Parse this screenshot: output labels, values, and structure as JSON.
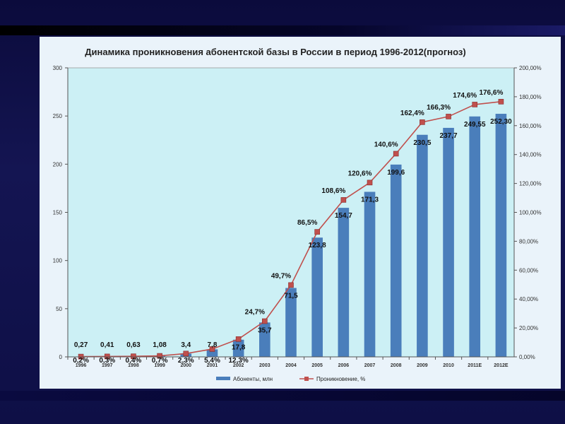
{
  "colors": {
    "bar": "#4a7ebb",
    "line": "#c0504d",
    "plot_bg": "#ccf0f5",
    "slide_bg": "#eaf3fa"
  },
  "chart_data": {
    "type": "bar",
    "title": "Динамика проникновения абонентской базы в России в период 1996-2012(прогноз)",
    "categories": [
      "1996",
      "1997",
      "1998",
      "1999",
      "2000",
      "2001",
      "2002",
      "2003",
      "2004",
      "2005",
      "2006",
      "2007",
      "2008",
      "2009",
      "2010",
      "2011E",
      "2012E"
    ],
    "series": [
      {
        "name": "Абоненты, млн",
        "type": "bar",
        "axis": "left",
        "values": [
          0.27,
          0.41,
          0.63,
          1.08,
          3.4,
          7.8,
          17.8,
          35.7,
          71.5,
          123.8,
          154.7,
          171.3,
          199.6,
          230.5,
          237.7,
          249.55,
          252.3
        ],
        "labels": [
          "0,27",
          "0,41",
          "0,63",
          "1,08",
          "3,4",
          "7,8",
          "17,8",
          "35,7",
          "71,5",
          "123,8",
          "154,7",
          "171,3",
          "199,6",
          "230,5",
          "237,7",
          "249,55",
          "252,30"
        ]
      },
      {
        "name": "Проникновение, %",
        "type": "line",
        "axis": "right",
        "values": [
          0.2,
          0.3,
          0.4,
          0.7,
          2.3,
          5.4,
          12.3,
          24.7,
          49.7,
          86.5,
          108.6,
          120.6,
          140.6,
          162.4,
          166.3,
          174.6,
          176.6
        ],
        "labels": [
          "0,2%",
          "0,3%",
          "0,4%",
          "0,7%",
          "2,3%",
          "5,4%",
          "12,3%",
          "24,7%",
          "49,7%",
          "86,5%",
          "108,6%",
          "120,6%",
          "140,6%",
          "162,4%",
          "166,3%",
          "174,6%",
          "176,6%"
        ]
      }
    ],
    "y_left": {
      "min": 0,
      "max": 300,
      "ticks": [
        0,
        50,
        100,
        150,
        200,
        250,
        300
      ],
      "tick_labels": [
        "0",
        "50",
        "100",
        "150",
        "200",
        "250",
        "300"
      ]
    },
    "y_right": {
      "min": 0,
      "max": 200,
      "ticks": [
        0,
        20,
        40,
        60,
        80,
        100,
        120,
        140,
        160,
        180,
        200
      ],
      "tick_labels": [
        "0,00%",
        "20,00%",
        "40,00%",
        "60,00%",
        "80,00%",
        "100,00%",
        "120,00%",
        "140,00%",
        "160,00%",
        "180,00%",
        "200,00%"
      ]
    },
    "grid": false,
    "legend_position": "bottom"
  }
}
